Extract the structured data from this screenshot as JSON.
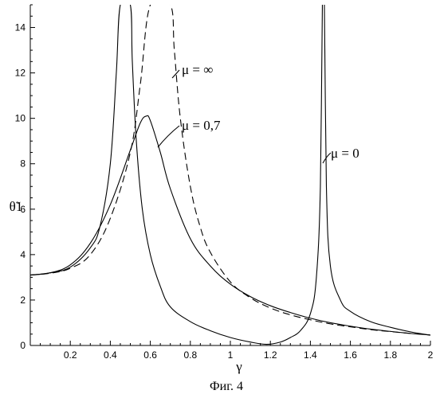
{
  "chart_data": {
    "type": "line",
    "caption": "Фиг. 4",
    "xlabel": "γ",
    "ylabel": "θ̃1",
    "xlim": [
      0,
      2
    ],
    "ylim": [
      0,
      15
    ],
    "x_ticks": [
      "0.2",
      "0.4",
      "0.6",
      "0.8",
      "1",
      "1.2",
      "1.4",
      "1.6",
      "1.8",
      "2"
    ],
    "y_ticks": [
      "0",
      "2",
      "4",
      "6",
      "8",
      "10",
      "12",
      "14"
    ],
    "grid": false,
    "series": [
      {
        "name": "μ = 0",
        "style": "solid",
        "points": [
          [
            0.0,
            3.1
          ],
          [
            0.1,
            3.2
          ],
          [
            0.2,
            3.45
          ],
          [
            0.3,
            4.3
          ],
          [
            0.35,
            5.3
          ],
          [
            0.4,
            8
          ],
          [
            0.43,
            12
          ],
          [
            0.45,
            15
          ],
          [
            0.5,
            15
          ],
          [
            0.51,
            12.5
          ],
          [
            0.53,
            9
          ],
          [
            0.56,
            6
          ],
          [
            0.6,
            4
          ],
          [
            0.65,
            2.6
          ],
          [
            0.7,
            1.7
          ],
          [
            0.8,
            1.05
          ],
          [
            0.9,
            0.65
          ],
          [
            1.0,
            0.35
          ],
          [
            1.1,
            0.15
          ],
          [
            1.18,
            0.05
          ],
          [
            1.25,
            0.15
          ],
          [
            1.3,
            0.35
          ],
          [
            1.35,
            0.65
          ],
          [
            1.4,
            1.4
          ],
          [
            1.43,
            3
          ],
          [
            1.45,
            7
          ],
          [
            1.46,
            15
          ],
          [
            1.47,
            15
          ],
          [
            1.48,
            7
          ],
          [
            1.5,
            3.5
          ],
          [
            1.55,
            2
          ],
          [
            1.6,
            1.5
          ],
          [
            1.7,
            1.05
          ],
          [
            1.8,
            0.8
          ],
          [
            1.9,
            0.6
          ],
          [
            2.0,
            0.45
          ]
        ]
      },
      {
        "name": "μ = 0,7",
        "style": "solid",
        "points": [
          [
            0.0,
            3.1
          ],
          [
            0.1,
            3.2
          ],
          [
            0.2,
            3.55
          ],
          [
            0.3,
            4.5
          ],
          [
            0.4,
            6.2
          ],
          [
            0.5,
            8.6
          ],
          [
            0.55,
            9.8
          ],
          [
            0.58,
            10.1
          ],
          [
            0.6,
            9.9
          ],
          [
            0.65,
            8.5
          ],
          [
            0.7,
            6.9
          ],
          [
            0.8,
            4.7
          ],
          [
            0.9,
            3.5
          ],
          [
            1.0,
            2.7
          ],
          [
            1.1,
            2.15
          ],
          [
            1.2,
            1.75
          ],
          [
            1.3,
            1.45
          ],
          [
            1.4,
            1.2
          ],
          [
            1.5,
            1.0
          ],
          [
            1.6,
            0.85
          ],
          [
            1.7,
            0.72
          ],
          [
            1.8,
            0.62
          ],
          [
            1.9,
            0.53
          ],
          [
            2.0,
            0.46
          ]
        ]
      },
      {
        "name": "μ = ∞",
        "style": "dashed",
        "points": [
          [
            0.0,
            3.1
          ],
          [
            0.1,
            3.18
          ],
          [
            0.2,
            3.4
          ],
          [
            0.3,
            4.0
          ],
          [
            0.4,
            5.6
          ],
          [
            0.5,
            8.5
          ],
          [
            0.55,
            11.5
          ],
          [
            0.6,
            15
          ],
          [
            0.7,
            15
          ],
          [
            0.72,
            13
          ],
          [
            0.75,
            10
          ],
          [
            0.8,
            7
          ],
          [
            0.85,
            5.2
          ],
          [
            0.9,
            4.1
          ],
          [
            1.0,
            2.8
          ],
          [
            1.1,
            2.1
          ],
          [
            1.2,
            1.65
          ],
          [
            1.3,
            1.35
          ],
          [
            1.4,
            1.13
          ],
          [
            1.5,
            0.95
          ],
          [
            1.6,
            0.82
          ],
          [
            1.7,
            0.7
          ],
          [
            1.8,
            0.61
          ],
          [
            1.9,
            0.53
          ],
          [
            2.0,
            0.46
          ]
        ]
      }
    ]
  }
}
